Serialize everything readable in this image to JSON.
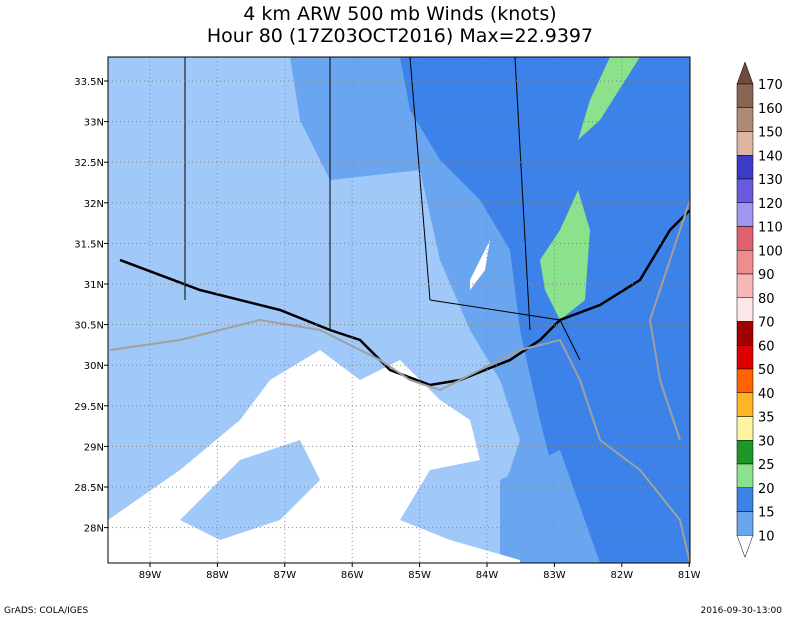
{
  "title": [
    "4 km ARW 500 mb Winds (knots)",
    "Hour 80 (17Z03OCT2016) Max=22.9397"
  ],
  "lat_labels": [
    "33.5N",
    "33N",
    "32.5N",
    "32N",
    "31.5N",
    "31N",
    "30.5N",
    "30N",
    "29.5N",
    "29N",
    "28.5N",
    "28N"
  ],
  "lon_labels": [
    "89W",
    "88W",
    "87W",
    "86W",
    "85W",
    "84W",
    "83W",
    "82W",
    "81W"
  ],
  "colorbar": {
    "labels": [
      170,
      160,
      150,
      140,
      130,
      120,
      110,
      100,
      90,
      80,
      70,
      60,
      50,
      40,
      35,
      30,
      25,
      20,
      15,
      10
    ],
    "colors": [
      "#6e4b3c",
      "#8a6553",
      "#b08a78",
      "#dcb4a4",
      "#3c3cc8",
      "#6a5ae0",
      "#a096f0",
      "#e06070",
      "#f08c8c",
      "#f6b8b8",
      "#fde8e8",
      "#a00000",
      "#dc0000",
      "#ff6400",
      "#ffb428",
      "#fff5a0",
      "#1e9628",
      "#8ce28c",
      "#3c82e8",
      "#6aa6f0",
      "#a0c8f8",
      "#ffffff"
    ]
  },
  "footer": {
    "left": "GrADS: COLA/IGES",
    "right": "2016-09-30-13:00"
  }
}
